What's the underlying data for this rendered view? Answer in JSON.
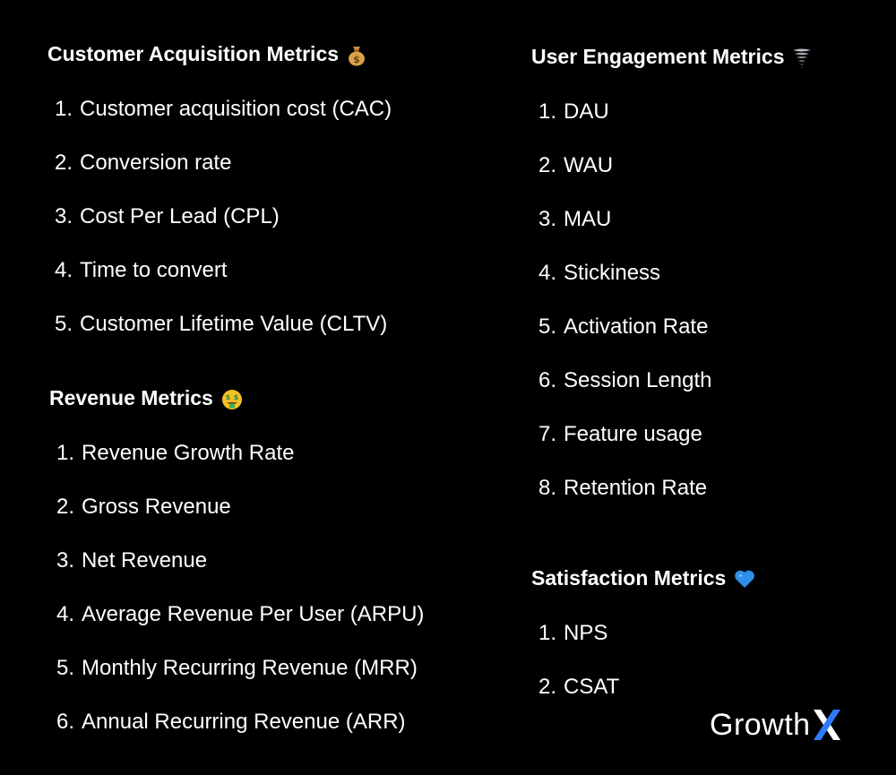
{
  "sections": {
    "acquisition": {
      "title": "Customer Acquisition Metrics",
      "emoji_icon": "money-bag-icon",
      "items": [
        {
          "num": "1.",
          "label": "Customer acquisition cost (CAC)"
        },
        {
          "num": "2.",
          "label": "Conversion rate"
        },
        {
          "num": "3.",
          "label": "Cost Per Lead (CPL)"
        },
        {
          "num": "4.",
          "label": "Time to convert"
        },
        {
          "num": "5.",
          "label": "Customer Lifetime Value (CLTV)"
        }
      ]
    },
    "revenue": {
      "title": "Revenue Metrics",
      "emoji_icon": "money-mouth-face-icon",
      "items": [
        {
          "num": "1.",
          "label": "Revenue Growth Rate"
        },
        {
          "num": "2.",
          "label": "Gross Revenue"
        },
        {
          "num": "3.",
          "label": "Net Revenue"
        },
        {
          "num": "4.",
          "label": "Average Revenue Per User (ARPU)"
        },
        {
          "num": "5.",
          "label": "Monthly Recurring Revenue (MRR)"
        },
        {
          "num": "6.",
          "label": "Annual Recurring Revenue (ARR)"
        }
      ]
    },
    "engagement": {
      "title": "User Engagement Metrics",
      "emoji_icon": "tornado-icon",
      "items": [
        {
          "num": "1.",
          "label": "DAU"
        },
        {
          "num": "2.",
          "label": "WAU"
        },
        {
          "num": "3.",
          "label": "MAU"
        },
        {
          "num": "4.",
          "label": "Stickiness"
        },
        {
          "num": "5.",
          "label": "Activation Rate"
        },
        {
          "num": "6.",
          "label": "Session Length"
        },
        {
          "num": "7.",
          "label": "Feature usage"
        },
        {
          "num": "8.",
          "label": "Retention Rate"
        }
      ]
    },
    "satisfaction": {
      "title": "Satisfaction Metrics",
      "emoji_icon": "blue-heart-icon",
      "items": [
        {
          "num": "1.",
          "label": "NPS"
        },
        {
          "num": "2.",
          "label": "CSAT"
        }
      ]
    }
  },
  "logo": {
    "text": "Growth",
    "accent_color": "#2f7bff"
  },
  "colors": {
    "background": "#000000",
    "text": "#ffffff"
  }
}
